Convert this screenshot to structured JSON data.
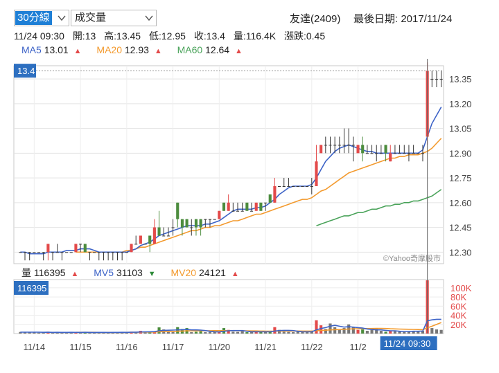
{
  "controls": {
    "period_label": "30分線",
    "indicator_label": "成交量"
  },
  "header": {
    "stock": "友達(2409)",
    "last_date_label": "最後日期: 2017/11/24"
  },
  "quote": {
    "time": "11/24 09:30",
    "open": "開:13",
    "high": "高:13.45",
    "low": "低:12.95",
    "close": "收:13.4",
    "volume": "量:116.4K",
    "change": "漲跌:0.45"
  },
  "ma_legend": [
    {
      "label": "MA5",
      "value": "13.01",
      "color": "#3d63c7",
      "arrow": "▲"
    },
    {
      "label": "MA20",
      "value": "12.93",
      "color": "#f39a2e",
      "arrow": "▲"
    },
    {
      "label": "MA60",
      "value": "12.64",
      "color": "#4aa35a",
      "arrow": "▲"
    }
  ],
  "vol_legend": [
    {
      "label": "量",
      "value": "116395",
      "color": "#222222",
      "arrow": "▲",
      "arrow_dir": "up"
    },
    {
      "label": "MV5",
      "value": "31103",
      "color": "#3d63c7",
      "arrow": "▼",
      "arrow_dir": "down"
    },
    {
      "label": "MV20",
      "value": "24121",
      "color": "#f39a2e",
      "arrow": "▲",
      "arrow_dir": "up"
    }
  ],
  "price_badge": "13.4",
  "vol_badge": "116395",
  "time_badge": "11/24 09:30",
  "watermark": "©Yahoo奇摩股市",
  "colors": {
    "up": "#e34a4a",
    "down": "#4c8c3e",
    "flat": "#333333",
    "ma5": "#3d63c7",
    "ma20": "#f39a2e",
    "ma60": "#4aa35a",
    "badge": "#2d6fc0"
  },
  "chart_data": {
    "type": "candlestick",
    "price_axis": {
      "ticks": [
        12.3,
        12.45,
        12.6,
        12.75,
        12.9,
        13.05,
        13.2,
        13.35
      ],
      "range": [
        12.23,
        13.43
      ]
    },
    "volume_axis": {
      "ticks": [
        "20K",
        "40K",
        "60K",
        "80K",
        "100K"
      ],
      "tick_values": [
        20000,
        40000,
        60000,
        80000,
        100000
      ],
      "range": [
        0,
        118000
      ]
    },
    "x_labels": [
      "11/14",
      "11/15",
      "11/16",
      "11/17",
      "11/20",
      "11/21",
      "11/22",
      "11/2"
    ],
    "x_label_bar_index": [
      3,
      13,
      23,
      33,
      43,
      53,
      63,
      73
    ],
    "candles": [
      [
        12.3,
        12.3,
        12.3,
        12.3
      ],
      [
        12.3,
        12.3,
        12.3,
        12.25
      ],
      [
        12.3,
        12.3,
        12.3,
        12.25
      ],
      [
        12.3,
        12.3,
        12.3,
        12.3
      ],
      [
        12.3,
        12.3,
        12.3,
        12.3
      ],
      [
        12.3,
        12.3,
        12.3,
        12.25
      ],
      [
        12.3,
        12.35,
        12.35,
        12.25
      ],
      [
        12.3,
        12.3,
        12.3,
        12.25
      ],
      [
        12.3,
        12.3,
        12.35,
        12.3
      ],
      [
        12.3,
        12.3,
        12.3,
        12.25
      ],
      [
        12.3,
        12.3,
        12.3,
        12.3
      ],
      [
        12.3,
        12.3,
        12.3,
        12.3
      ],
      [
        12.3,
        12.35,
        12.35,
        12.3
      ],
      [
        12.35,
        12.35,
        12.35,
        12.3
      ],
      [
        12.35,
        12.3,
        12.35,
        12.3
      ],
      [
        12.3,
        12.3,
        12.3,
        12.25
      ],
      [
        12.3,
        12.3,
        12.3,
        12.3
      ],
      [
        12.3,
        12.3,
        12.3,
        12.25
      ],
      [
        12.3,
        12.3,
        12.3,
        12.25
      ],
      [
        12.3,
        12.3,
        12.3,
        12.25
      ],
      [
        12.3,
        12.3,
        12.3,
        12.25
      ],
      [
        12.3,
        12.3,
        12.3,
        12.25
      ],
      [
        12.3,
        12.3,
        12.3,
        12.25
      ],
      [
        12.3,
        12.3,
        12.3,
        12.3
      ],
      [
        12.3,
        12.35,
        12.35,
        12.3
      ],
      [
        12.35,
        12.35,
        12.4,
        12.35
      ],
      [
        12.35,
        12.4,
        12.4,
        12.35
      ],
      [
        12.35,
        12.35,
        12.35,
        12.35
      ],
      [
        12.4,
        12.35,
        12.4,
        12.3
      ],
      [
        12.35,
        12.45,
        12.5,
        12.35
      ],
      [
        12.45,
        12.4,
        12.55,
        12.4
      ],
      [
        12.4,
        12.4,
        12.45,
        12.4
      ],
      [
        12.4,
        12.4,
        12.45,
        12.4
      ],
      [
        12.45,
        12.45,
        12.5,
        12.4
      ],
      [
        12.6,
        12.5,
        12.6,
        12.45
      ],
      [
        12.5,
        12.45,
        12.5,
        12.4
      ],
      [
        12.5,
        12.45,
        12.5,
        12.45
      ],
      [
        12.45,
        12.45,
        12.5,
        12.4
      ],
      [
        12.5,
        12.45,
        12.5,
        12.4
      ],
      [
        12.5,
        12.45,
        12.5,
        12.4
      ],
      [
        12.5,
        12.5,
        12.5,
        12.45
      ],
      [
        12.5,
        12.5,
        12.5,
        12.45
      ],
      [
        12.5,
        12.5,
        12.5,
        12.5
      ],
      [
        12.5,
        12.55,
        12.55,
        12.5
      ],
      [
        12.6,
        12.55,
        12.6,
        12.55
      ],
      [
        12.55,
        12.6,
        12.65,
        12.55
      ],
      [
        12.55,
        12.55,
        12.6,
        12.55
      ],
      [
        12.55,
        12.55,
        12.6,
        12.55
      ],
      [
        12.55,
        12.55,
        12.6,
        12.55
      ],
      [
        12.6,
        12.55,
        12.6,
        12.55
      ],
      [
        12.55,
        12.55,
        12.6,
        12.55
      ],
      [
        12.55,
        12.6,
        12.6,
        12.55
      ],
      [
        12.6,
        12.55,
        12.6,
        12.55
      ],
      [
        12.6,
        12.6,
        12.6,
        12.55
      ],
      [
        12.65,
        12.6,
        12.65,
        12.6
      ],
      [
        12.6,
        12.7,
        12.75,
        12.6
      ],
      [
        12.7,
        12.7,
        12.7,
        12.7
      ],
      [
        12.7,
        12.7,
        12.75,
        12.7
      ],
      [
        12.7,
        12.7,
        12.75,
        12.7
      ],
      [
        12.7,
        12.7,
        12.7,
        12.7
      ],
      [
        12.7,
        12.7,
        12.7,
        12.7
      ],
      [
        12.7,
        12.7,
        12.7,
        12.7
      ],
      [
        12.7,
        12.7,
        12.7,
        12.7
      ],
      [
        12.7,
        12.7,
        12.75,
        12.65
      ],
      [
        12.7,
        12.85,
        12.95,
        12.7
      ],
      [
        12.9,
        12.95,
        12.95,
        12.9
      ],
      [
        12.95,
        12.95,
        13.0,
        12.9
      ],
      [
        12.95,
        12.95,
        13.0,
        12.9
      ],
      [
        12.95,
        12.95,
        13.0,
        12.9
      ],
      [
        12.95,
        12.95,
        13.0,
        12.9
      ],
      [
        12.95,
        12.95,
        13.05,
        12.9
      ],
      [
        12.95,
        12.95,
        13.05,
        12.9
      ],
      [
        12.95,
        12.95,
        13.0,
        12.85
      ],
      [
        12.9,
        12.95,
        12.95,
        12.9
      ],
      [
        12.95,
        12.9,
        13.0,
        12.85
      ],
      [
        12.9,
        12.9,
        12.95,
        12.9
      ],
      [
        12.9,
        12.9,
        12.95,
        12.9
      ],
      [
        12.9,
        12.9,
        12.95,
        12.85
      ],
      [
        12.9,
        12.9,
        12.95,
        12.9
      ],
      [
        12.95,
        12.9,
        12.95,
        12.85
      ],
      [
        12.85,
        12.9,
        12.95,
        12.85
      ],
      [
        12.9,
        12.9,
        12.95,
        12.9
      ],
      [
        12.9,
        12.9,
        12.95,
        12.9
      ],
      [
        12.9,
        12.9,
        12.95,
        12.9
      ],
      [
        12.9,
        12.9,
        12.95,
        12.85
      ],
      [
        12.9,
        12.9,
        12.95,
        12.9
      ],
      [
        12.9,
        12.9,
        12.9,
        12.9
      ],
      [
        12.9,
        12.9,
        12.95,
        12.85
      ],
      [
        13.0,
        13.4,
        13.45,
        12.95
      ],
      [
        13.35,
        13.35,
        13.4,
        13.3
      ],
      [
        13.35,
        13.35,
        13.4,
        13.3
      ],
      [
        13.35,
        13.35,
        13.4,
        13.3
      ]
    ],
    "volumes": [
      3500,
      3000,
      2500,
      3000,
      2000,
      2500,
      4000,
      2000,
      3000,
      2000,
      3500,
      2500,
      2000,
      3000,
      2500,
      2000,
      2500,
      3000,
      2000,
      2500,
      3000,
      2500,
      3500,
      2000,
      4000,
      3000,
      6000,
      4000,
      3000,
      5000,
      13500,
      9000,
      4000,
      3500,
      14000,
      10000,
      12000,
      3000,
      4000,
      5000,
      3000,
      3500,
      4000,
      3000,
      12000,
      8000,
      4000,
      3500,
      5000,
      3000,
      4000,
      3500,
      3000,
      4000,
      5000,
      14000,
      8000,
      4000,
      3500,
      3000,
      4500,
      3500,
      3000,
      5000,
      29000,
      18000,
      10000,
      22000,
      14000,
      8000,
      12000,
      20000,
      15000,
      8000,
      9000,
      6000,
      8000,
      10000,
      6000,
      4000,
      6000,
      5000,
      4000,
      3500,
      4000,
      6000,
      5000,
      6000,
      116395,
      12000,
      9000,
      8000
    ],
    "ma5": [
      12.3,
      12.3,
      12.29,
      12.29,
      12.29,
      12.29,
      12.3,
      12.3,
      12.3,
      12.3,
      12.31,
      12.31,
      12.31,
      12.32,
      12.32,
      12.32,
      12.31,
      12.3,
      12.3,
      12.3,
      12.3,
      12.3,
      12.3,
      12.3,
      12.31,
      12.32,
      12.34,
      12.35,
      12.36,
      12.38,
      12.4,
      12.41,
      12.42,
      12.43,
      12.44,
      12.45,
      12.46,
      12.46,
      12.46,
      12.46,
      12.47,
      12.47,
      12.48,
      12.49,
      12.51,
      12.53,
      12.55,
      12.56,
      12.56,
      12.56,
      12.56,
      12.57,
      12.57,
      12.58,
      12.6,
      12.62,
      12.65,
      12.67,
      12.69,
      12.7,
      12.7,
      12.7,
      12.7,
      12.71,
      12.75,
      12.8,
      12.85,
      12.88,
      12.91,
      12.93,
      12.94,
      12.95,
      12.94,
      12.93,
      12.92,
      12.91,
      12.91,
      12.9,
      12.9,
      12.9,
      12.9,
      12.9,
      12.9,
      12.9,
      12.9,
      12.9,
      12.9,
      12.92,
      13.0,
      13.08,
      13.13,
      13.18
    ],
    "ma20": [
      null,
      null,
      null,
      null,
      null,
      null,
      null,
      null,
      null,
      null,
      null,
      null,
      12.3,
      12.3,
      12.3,
      12.3,
      12.3,
      12.3,
      12.3,
      12.3,
      12.3,
      12.3,
      12.3,
      12.31,
      12.31,
      12.32,
      12.33,
      12.33,
      12.34,
      12.35,
      12.36,
      12.37,
      12.38,
      12.39,
      12.4,
      12.41,
      12.42,
      12.43,
      12.43,
      12.44,
      12.45,
      12.45,
      12.46,
      12.46,
      12.47,
      12.48,
      12.49,
      12.49,
      12.5,
      12.51,
      12.52,
      12.53,
      12.53,
      12.54,
      12.55,
      12.56,
      12.57,
      12.58,
      12.59,
      12.6,
      12.61,
      12.62,
      12.62,
      12.63,
      12.65,
      12.67,
      12.68,
      12.7,
      12.72,
      12.74,
      12.76,
      12.78,
      12.79,
      12.8,
      12.81,
      12.82,
      12.83,
      12.84,
      12.85,
      12.86,
      12.87,
      12.87,
      12.88,
      12.88,
      12.89,
      12.89,
      12.89,
      12.9,
      12.91,
      12.93,
      12.96,
      12.99
    ],
    "ma60": [
      null,
      null,
      null,
      null,
      null,
      null,
      null,
      null,
      null,
      null,
      null,
      null,
      null,
      null,
      null,
      null,
      null,
      null,
      null,
      null,
      null,
      null,
      null,
      null,
      null,
      null,
      null,
      null,
      null,
      null,
      null,
      null,
      null,
      null,
      null,
      null,
      null,
      null,
      null,
      null,
      null,
      null,
      null,
      null,
      null,
      null,
      null,
      null,
      null,
      null,
      null,
      null,
      null,
      null,
      null,
      null,
      null,
      null,
      null,
      null,
      null,
      null,
      null,
      null,
      12.46,
      12.47,
      12.48,
      12.49,
      12.5,
      12.51,
      12.52,
      12.52,
      12.53,
      12.54,
      12.54,
      12.55,
      12.56,
      12.56,
      12.57,
      12.58,
      12.58,
      12.59,
      12.59,
      12.6,
      12.6,
      12.61,
      12.61,
      12.62,
      12.63,
      12.64,
      12.66,
      12.68
    ],
    "mv5": [
      3000,
      3000,
      3000,
      3000,
      3000,
      2700,
      2900,
      2600,
      2700,
      2600,
      2500,
      2700,
      2600,
      2600,
      2700,
      2500,
      2400,
      2500,
      2500,
      2400,
      2500,
      2600,
      2700,
      2600,
      2800,
      2900,
      3500,
      3700,
      3900,
      4200,
      6000,
      7000,
      7200,
      7500,
      8000,
      8500,
      9000,
      8000,
      8000,
      7500,
      6500,
      5000,
      4000,
      3500,
      5000,
      6000,
      6500,
      6500,
      6500,
      5000,
      4000,
      4000,
      3800,
      3800,
      4000,
      5500,
      6500,
      7000,
      7000,
      6500,
      5000,
      4000,
      3800,
      4000,
      8000,
      11000,
      13000,
      16000,
      18000,
      16000,
      14000,
      15000,
      14000,
      13000,
      12000,
      10000,
      9000,
      8000,
      8000,
      7000,
      6000,
      6000,
      5000,
      4500,
      4500,
      5000,
      5000,
      5500,
      28000,
      30000,
      31103,
      31103
    ],
    "mv20": [
      null,
      null,
      null,
      null,
      null,
      null,
      null,
      null,
      null,
      null,
      null,
      null,
      2700,
      2700,
      2700,
      2700,
      2700,
      2600,
      2600,
      2600,
      2600,
      2600,
      2600,
      2700,
      2700,
      2800,
      3000,
      3100,
      3200,
      3400,
      3900,
      4200,
      4400,
      4600,
      5100,
      5500,
      5900,
      5900,
      6000,
      6100,
      6100,
      6200,
      6300,
      6300,
      6400,
      6300,
      6300,
      6100,
      6000,
      5900,
      5800,
      5700,
      5500,
      5300,
      5200,
      5300,
      5400,
      5500,
      5500,
      5500,
      5600,
      5500,
      5400,
      5400,
      6100,
      6800,
      7200,
      8000,
      8500,
      8800,
      9200,
      9800,
      10300,
      10600,
      10800,
      10900,
      11000,
      11200,
      11300,
      11000,
      10500,
      10200,
      9800,
      9500,
      9400,
      9100,
      8700,
      8500,
      12500,
      16000,
      20000,
      24121
    ],
    "ma60_start_index": 64,
    "current_price": 13.4,
    "current_volume": 116395
  }
}
